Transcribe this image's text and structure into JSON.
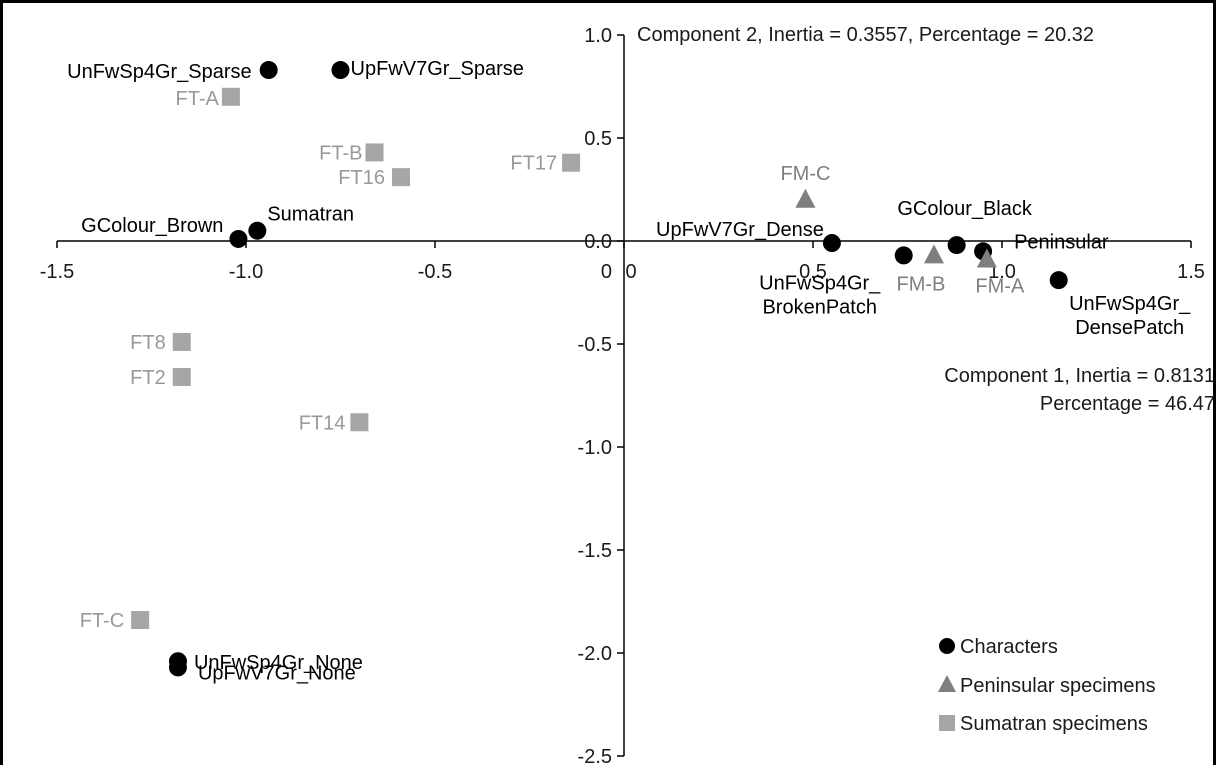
{
  "chart_data": {
    "type": "scatter",
    "title": "",
    "xlim": [
      -1.5,
      1.5
    ],
    "ylim": [
      -2.5,
      1.0
    ],
    "x_ticks": [
      -1.5,
      -1.0,
      -0.5,
      0,
      0.5,
      1.0,
      1.5
    ],
    "x_tick_labels": [
      "-1.5",
      "-1.0",
      "-0.5",
      "0",
      "0.5",
      "1.0",
      "1.5"
    ],
    "y_ticks": [
      1.0,
      0.5,
      0.0,
      -0.5,
      -1.0,
      -1.5,
      -2.0,
      -2.5
    ],
    "y_tick_labels": [
      "1.0",
      "0.5",
      "0.0",
      "-0.5",
      "-1.0",
      "-1.5",
      "-2.0",
      "-2.5"
    ],
    "y_origin_label": "0",
    "component2_label": "Component 2, Inertia = 0.3557, Percentage = 20.32",
    "component1_label_line1": "Component 1, Inertia = 0.8131",
    "component1_label_line2": "Percentage = 46.47",
    "grid": false,
    "legend_position": "bottom-right",
    "colors": {
      "characters": "#000000",
      "peninsular": "#7f7f7f",
      "sumatran": "#a6a6a6",
      "sumatran_label": "#999999"
    },
    "series": [
      {
        "name": "Characters",
        "marker": "circle",
        "points": [
          {
            "label": "UnFwSp4Gr_Sparse",
            "x": -0.94,
            "y": 0.83
          },
          {
            "label": "UpFwV7Gr_Sparse",
            "x": -0.75,
            "y": 0.83
          },
          {
            "label": "GColour_Brown",
            "x": -1.02,
            "y": 0.01
          },
          {
            "label": "Sumatran",
            "x": -0.97,
            "y": 0.05
          },
          {
            "label": "UpFwV7Gr_Dense",
            "x": 0.55,
            "y": -0.01
          },
          {
            "label": "UnFwSp4Gr_BrokenPatch",
            "label_lines": [
              "UnFwSp4Gr_",
              "BrokenPatch"
            ],
            "x": 0.74,
            "y": -0.07
          },
          {
            "label": "GColour_Black",
            "x": 0.88,
            "y": -0.02
          },
          {
            "label": "Peninsular",
            "x": 0.95,
            "y": -0.05
          },
          {
            "label": "UnFwSp4Gr_DensePatch",
            "label_lines": [
              "UnFwSp4Gr_",
              "DensePatch"
            ],
            "x": 1.15,
            "y": -0.19
          },
          {
            "label": "UnFwSp4Gr_None",
            "x": -1.18,
            "y": -2.04
          },
          {
            "label": "UpFwV7Gr_None",
            "x": -1.18,
            "y": -2.07
          }
        ]
      },
      {
        "name": "Peninsular specimens",
        "marker": "triangle",
        "points": [
          {
            "label": "FM-C",
            "x": 0.48,
            "y": 0.2
          },
          {
            "label": "FM-B",
            "x": 0.82,
            "y": -0.07
          },
          {
            "label": "FM-A",
            "x": 0.96,
            "y": -0.09
          }
        ]
      },
      {
        "name": "Sumatran specimens",
        "marker": "square",
        "points": [
          {
            "label": "FT-A",
            "x": -1.04,
            "y": 0.7
          },
          {
            "label": "FT-B",
            "x": -0.66,
            "y": 0.43
          },
          {
            "label": "FT16",
            "x": -0.59,
            "y": 0.31
          },
          {
            "label": "FT17",
            "x": -0.14,
            "y": 0.38
          },
          {
            "label": "FT8",
            "x": -1.17,
            "y": -0.49
          },
          {
            "label": "FT2",
            "x": -1.17,
            "y": -0.66
          },
          {
            "label": "FT14",
            "x": -0.7,
            "y": -0.88
          },
          {
            "label": "FT-C",
            "x": -1.28,
            "y": -1.84
          }
        ]
      }
    ]
  }
}
